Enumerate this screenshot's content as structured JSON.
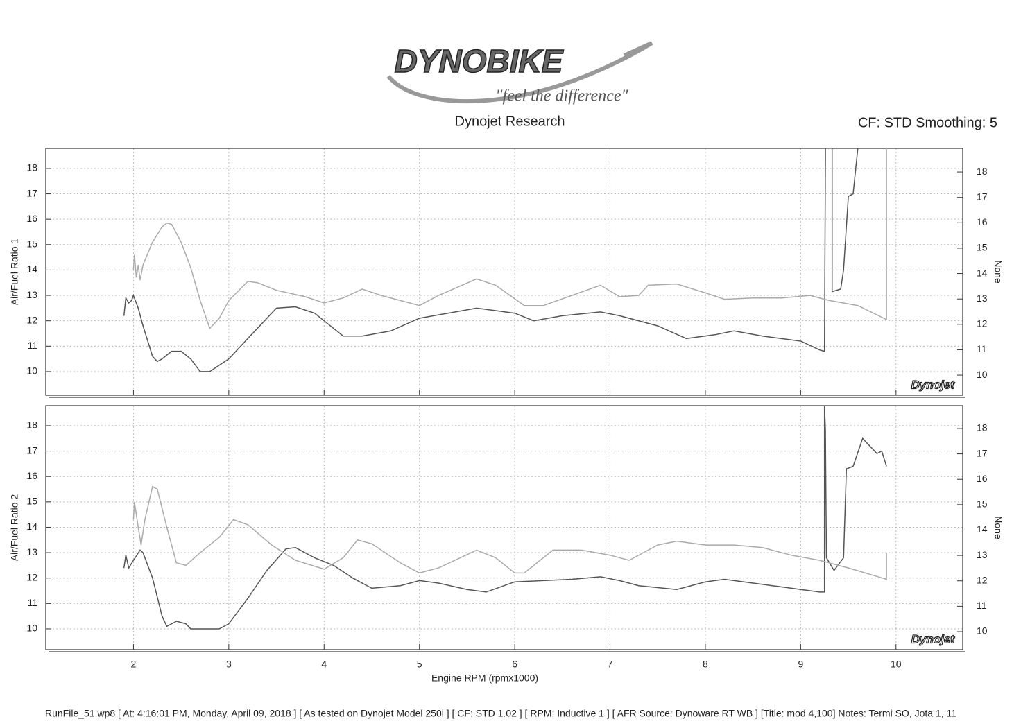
{
  "header": {
    "logo": "DYNOBIKE",
    "slogan": "\"feel the difference\"",
    "title": "Dynojet Research",
    "settings": "CF: STD Smoothing: 5"
  },
  "footer": {
    "line": "RunFile_51.wp8 [ At: 4:16:01 PM, Monday, April 09, 2018 ] [ As tested on Dynojet Model 250i ] [ CF: STD 1.02 ] [ RPM: Inductive 1 ] [ AFR Source: Dynoware RT WB ] [Title: mod 4,100]  Notes: Termi SO, Jota 1, 11"
  },
  "chart_data": [
    {
      "type": "line",
      "ylabel": "Air/Fuel Ratio 1",
      "y2label": "None",
      "logo": "Dynojet",
      "grid": true,
      "xlim": [
        1.08,
        10.7
      ],
      "xticks": [
        2,
        3,
        4,
        5,
        6,
        7,
        8,
        9,
        10
      ],
      "ylim": [
        9.07,
        18.79
      ],
      "yticks": [
        10,
        11,
        12,
        13,
        14,
        15,
        16,
        17,
        18
      ],
      "y2lim": [
        9.21,
        18.93
      ],
      "y2ticks": [
        10,
        11,
        12,
        13,
        14,
        15,
        16,
        17,
        18
      ],
      "series": [
        {
          "color": "#555555",
          "x": [
            1.9,
            1.92,
            1.95,
            1.98,
            2.0,
            2.05,
            2.1,
            2.2,
            2.25,
            2.3,
            2.4,
            2.5,
            2.6,
            2.7,
            2.8,
            3.0,
            3.2,
            3.4,
            3.5,
            3.7,
            3.9,
            4.1,
            4.2,
            4.4,
            4.7,
            5.0,
            5.3,
            5.6,
            5.8,
            6.0,
            6.2,
            6.5,
            6.9,
            7.1,
            7.5,
            7.8,
            8.1,
            8.3,
            8.6,
            9.0,
            9.2,
            9.25,
            9.26,
            9.33,
            9.33,
            9.42,
            9.45,
            9.5,
            9.55,
            9.6
          ],
          "values": [
            12.2,
            12.9,
            12.7,
            12.8,
            13.0,
            12.5,
            11.8,
            10.6,
            10.4,
            10.5,
            10.8,
            10.8,
            10.5,
            10.0,
            10.0,
            10.5,
            11.3,
            12.1,
            12.5,
            12.55,
            12.3,
            11.7,
            11.4,
            11.4,
            11.6,
            12.1,
            12.3,
            12.5,
            12.4,
            12.3,
            12.0,
            12.2,
            12.35,
            12.2,
            11.8,
            11.3,
            11.45,
            11.6,
            11.4,
            11.2,
            10.85,
            10.8,
            18.8,
            18.8,
            13.15,
            13.25,
            14.0,
            16.9,
            17.0,
            18.8
          ]
        },
        {
          "color": "#aaaaaa",
          "x": [
            2.0,
            2.01,
            2.03,
            2.05,
            2.07,
            2.1,
            2.2,
            2.3,
            2.35,
            2.4,
            2.5,
            2.6,
            2.7,
            2.8,
            2.9,
            3.0,
            3.2,
            3.3,
            3.5,
            3.8,
            4.0,
            4.2,
            4.4,
            4.6,
            5.0,
            5.2,
            5.6,
            5.8,
            6.1,
            6.3,
            6.6,
            6.9,
            7.1,
            7.3,
            7.4,
            7.7,
            8.0,
            8.2,
            8.5,
            8.8,
            9.1,
            9.3,
            9.6,
            9.9,
            9.9
          ],
          "values": [
            14.0,
            14.6,
            13.7,
            14.2,
            13.6,
            14.2,
            15.1,
            15.7,
            15.85,
            15.8,
            15.1,
            14.1,
            12.8,
            11.7,
            12.1,
            12.8,
            13.55,
            13.5,
            13.2,
            12.95,
            12.7,
            12.9,
            13.25,
            13.0,
            12.6,
            13.0,
            13.65,
            13.4,
            12.6,
            12.6,
            13.0,
            13.4,
            12.95,
            13.0,
            13.4,
            13.45,
            13.1,
            12.85,
            12.9,
            12.9,
            13.0,
            12.8,
            12.6,
            12.05,
            18.8
          ]
        }
      ]
    },
    {
      "type": "line",
      "ylabel": "Air/Fuel Ratio 2",
      "y2label": "None",
      "logo": "Dynojet",
      "grid": true,
      "xlabel": "Engine RPM (rpmx1000)",
      "xlim": [
        1.08,
        10.7
      ],
      "xticks": [
        2,
        3,
        4,
        5,
        6,
        7,
        8,
        9,
        10
      ],
      "ylim": [
        9.18,
        18.79
      ],
      "yticks": [
        10,
        11,
        12,
        13,
        14,
        15,
        16,
        17,
        18
      ],
      "y2lim": [
        9.29,
        18.9
      ],
      "y2ticks": [
        10,
        11,
        12,
        13,
        14,
        15,
        16,
        17,
        18
      ],
      "series": [
        {
          "color": "#555555",
          "x": [
            1.9,
            1.92,
            1.95,
            2.0,
            2.07,
            2.1,
            2.2,
            2.3,
            2.35,
            2.45,
            2.55,
            2.6,
            2.9,
            3.0,
            3.2,
            3.4,
            3.6,
            3.7,
            3.9,
            4.1,
            4.3,
            4.5,
            4.8,
            5.0,
            5.2,
            5.5,
            5.7,
            6.0,
            6.3,
            6.6,
            6.9,
            7.1,
            7.3,
            7.7,
            8.0,
            8.2,
            8.5,
            8.8,
            9.0,
            9.2,
            9.25,
            9.25,
            9.26,
            9.26,
            9.27,
            9.35,
            9.45,
            9.48,
            9.55,
            9.65,
            9.8,
            9.85,
            9.9
          ],
          "values": [
            12.4,
            12.9,
            12.4,
            12.7,
            13.1,
            13.0,
            12.0,
            10.5,
            10.1,
            10.3,
            10.2,
            10.0,
            10.0,
            10.2,
            11.2,
            12.3,
            13.15,
            13.2,
            12.8,
            12.5,
            12.0,
            11.6,
            11.7,
            11.9,
            11.8,
            11.55,
            11.45,
            11.85,
            11.9,
            11.95,
            12.05,
            11.9,
            11.7,
            11.55,
            11.85,
            11.95,
            11.8,
            11.65,
            11.55,
            11.45,
            11.45,
            18.8,
            17.8,
            17.6,
            12.8,
            12.3,
            12.8,
            16.3,
            16.4,
            17.5,
            16.9,
            17.0,
            16.4
          ]
        },
        {
          "color": "#aaaaaa",
          "x": [
            2.0,
            2.01,
            2.05,
            2.08,
            2.12,
            2.2,
            2.25,
            2.35,
            2.45,
            2.55,
            2.7,
            2.9,
            3.05,
            3.2,
            3.45,
            3.7,
            4.0,
            4.2,
            4.35,
            4.5,
            4.8,
            5.0,
            5.2,
            5.6,
            5.8,
            6.0,
            6.1,
            6.4,
            6.7,
            7.0,
            7.2,
            7.5,
            7.7,
            8.0,
            8.3,
            8.6,
            8.9,
            9.2,
            9.5,
            9.9,
            9.9
          ],
          "values": [
            14.3,
            15.0,
            14.0,
            13.3,
            14.3,
            15.6,
            15.5,
            14.0,
            12.6,
            12.5,
            13.0,
            13.6,
            14.3,
            14.1,
            13.3,
            12.7,
            12.35,
            12.8,
            13.5,
            13.35,
            12.6,
            12.2,
            12.4,
            13.1,
            12.8,
            12.2,
            12.2,
            13.1,
            13.1,
            12.9,
            12.7,
            13.3,
            13.45,
            13.3,
            13.3,
            13.2,
            12.9,
            12.7,
            12.4,
            11.95,
            13.0
          ]
        }
      ]
    }
  ]
}
